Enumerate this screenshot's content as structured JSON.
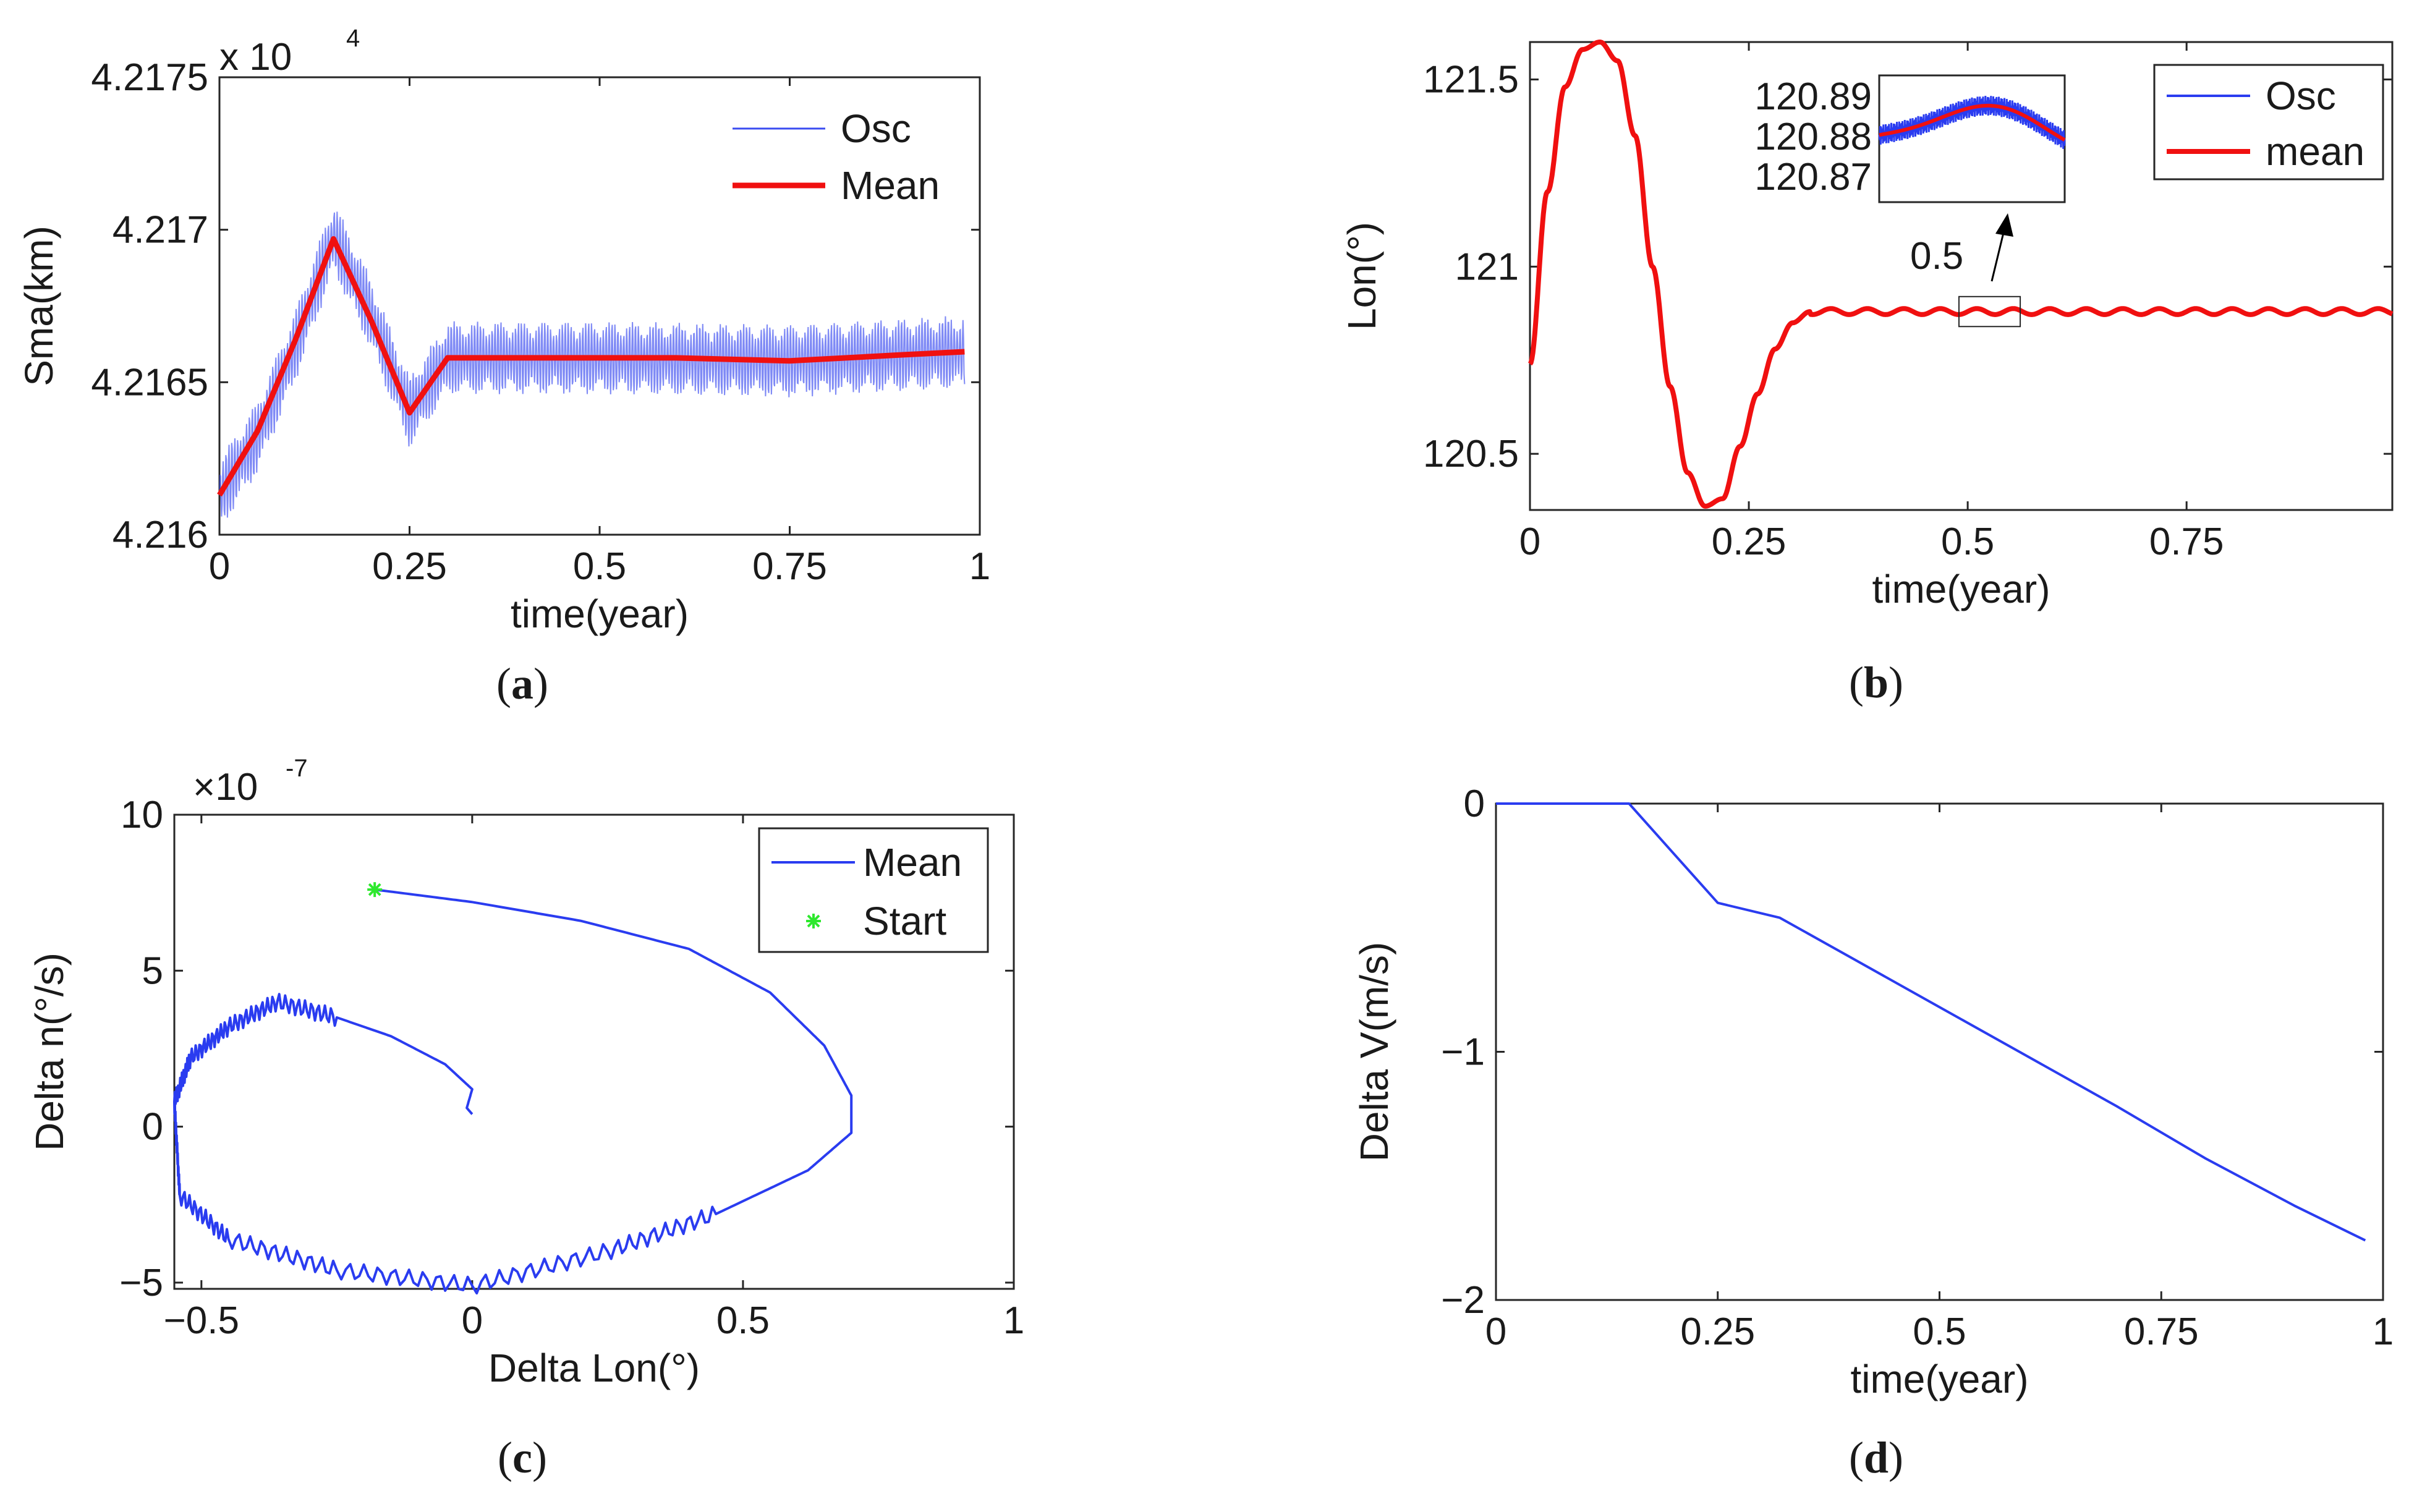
{
  "colors": {
    "osc": "#2a3cf0",
    "osc_fill": "#3b4cf0",
    "mean": "#f01010",
    "start": "#2ee82e",
    "axis": "#262626"
  },
  "chart_data": [
    {
      "id": "a",
      "caption": "a",
      "type": "line",
      "ylabel": "Sma(km)",
      "xlabel": "time(year)",
      "exponent": {
        "base": "x 10",
        "power": "4"
      },
      "xlim": [
        0,
        1
      ],
      "ylim": [
        4.216,
        4.2175
      ],
      "xticks": [
        0,
        0.25,
        0.5,
        0.75,
        1
      ],
      "xtick_labels": [
        "0",
        "0.25",
        "0.5",
        "0.75",
        "1"
      ],
      "yticks": [
        4.216,
        4.2165,
        4.217,
        4.2175
      ],
      "ytick_labels": [
        "4.216",
        "4.2165",
        "4.217",
        "4.2175"
      ],
      "legend": {
        "position": "top-right",
        "entries": [
          "Osc",
          "Mean"
        ]
      },
      "series": [
        {
          "name": "Osc",
          "kind": "band",
          "x": [
            0,
            0.05,
            0.1,
            0.15,
            0.2,
            0.25,
            0.3,
            0.5,
            0.75,
            0.98
          ],
          "center": [
            4.21613,
            4.21632,
            4.21662,
            4.21698,
            4.21672,
            4.2164,
            4.21658,
            4.21658,
            4.21657,
            4.2166
          ],
          "amplitude": 0.00012
        },
        {
          "name": "Mean",
          "x": [
            0,
            0.05,
            0.1,
            0.15,
            0.2,
            0.25,
            0.3,
            0.4,
            0.5,
            0.6,
            0.75,
            0.9,
            0.98
          ],
          "values": [
            4.21613,
            4.21634,
            4.21664,
            4.21697,
            4.2167,
            4.2164,
            4.21658,
            4.21658,
            4.21658,
            4.21658,
            4.21657,
            4.21659,
            4.2166
          ]
        }
      ]
    },
    {
      "id": "b",
      "caption": "b",
      "type": "line",
      "ylabel": "Lon(°)",
      "xlabel": "time(year)",
      "xlim": [
        0,
        0.985
      ],
      "ylim": [
        120.35,
        121.6
      ],
      "xticks": [
        0,
        0.25,
        0.5,
        0.75
      ],
      "xtick_labels": [
        "0",
        "0.25",
        "0.5",
        "0.75"
      ],
      "yticks": [
        120.5,
        121,
        121.5
      ],
      "ytick_labels": [
        "120.5",
        "121",
        "121.5"
      ],
      "legend": {
        "position": "top-right",
        "entries": [
          "Osc",
          "mean"
        ]
      },
      "inset": {
        "yticks": [
          "120.89",
          "120.88",
          "120.87"
        ],
        "pointer_label": "0.5"
      },
      "series": [
        {
          "name": "mean",
          "x": [
            0,
            0.02,
            0.04,
            0.06,
            0.08,
            0.1,
            0.12,
            0.14,
            0.16,
            0.18,
            0.2,
            0.22,
            0.24,
            0.26,
            0.28,
            0.3,
            0.32,
            0.35,
            0.5,
            0.75,
            0.985
          ],
          "values": [
            120.74,
            121.2,
            121.48,
            121.58,
            121.6,
            121.55,
            121.35,
            121.0,
            120.68,
            120.45,
            120.36,
            120.38,
            120.52,
            120.66,
            120.78,
            120.85,
            120.88,
            120.88,
            120.88,
            120.88,
            120.88
          ]
        }
      ]
    },
    {
      "id": "c",
      "caption": "c",
      "type": "line",
      "ylabel": "Delta n(°/s)",
      "xlabel": "Delta Lon(°)",
      "exponent": {
        "base": "×10",
        "power": "-7"
      },
      "xlim": [
        -0.55,
        1
      ],
      "ylim": [
        -5.2,
        10
      ],
      "xticks": [
        -0.5,
        0,
        0.5,
        1
      ],
      "xtick_labels": [
        "−0.5",
        "0",
        "0.5",
        "1"
      ],
      "yticks": [
        -5,
        0,
        5,
        10
      ],
      "ytick_labels": [
        "−5",
        "0",
        "5",
        "10"
      ],
      "legend": {
        "position": "top-right",
        "entries": [
          "Mean",
          "Start"
        ]
      },
      "series": [
        {
          "name": "Mean",
          "x": [
            -0.18,
            0.0,
            0.2,
            0.4,
            0.55,
            0.65,
            0.7,
            0.7,
            0.62,
            0.45,
            0.25,
            0.0,
            -0.25,
            -0.45,
            -0.54,
            -0.55,
            -0.52,
            -0.45,
            -0.36,
            -0.25,
            -0.15,
            -0.05,
            0.0,
            -0.01,
            0.0
          ],
          "y": [
            7.6,
            7.2,
            6.6,
            5.7,
            4.3,
            2.6,
            1.0,
            -0.2,
            -1.4,
            -2.8,
            -4.0,
            -5.1,
            -4.6,
            -3.6,
            -2.2,
            0.8,
            2.2,
            3.2,
            4.0,
            3.5,
            2.9,
            2.0,
            1.2,
            0.6,
            0.4
          ]
        },
        {
          "name": "Start",
          "kind": "point",
          "x": [
            -0.18
          ],
          "y": [
            7.6
          ]
        }
      ]
    },
    {
      "id": "d",
      "caption": "d",
      "type": "line",
      "ylabel": "Delta V(m/s)",
      "xlabel": "time(year)",
      "xlim": [
        0,
        1
      ],
      "ylim": [
        -2,
        0
      ],
      "xticks": [
        0,
        0.25,
        0.5,
        0.75,
        1
      ],
      "xtick_labels": [
        "0",
        "0.25",
        "0.5",
        "0.75",
        "1"
      ],
      "yticks": [
        0,
        -1,
        -2
      ],
      "ytick_labels": [
        "0",
        "−1",
        "−2"
      ],
      "series": [
        {
          "x": [
            0,
            0.15,
            0.2,
            0.25,
            0.32,
            0.4,
            0.5,
            0.6,
            0.7,
            0.8,
            0.9,
            0.98
          ],
          "values": [
            0,
            0,
            -0.2,
            -0.4,
            -0.46,
            -0.62,
            -0.82,
            -1.02,
            -1.22,
            -1.43,
            -1.62,
            -1.76
          ]
        }
      ]
    }
  ]
}
